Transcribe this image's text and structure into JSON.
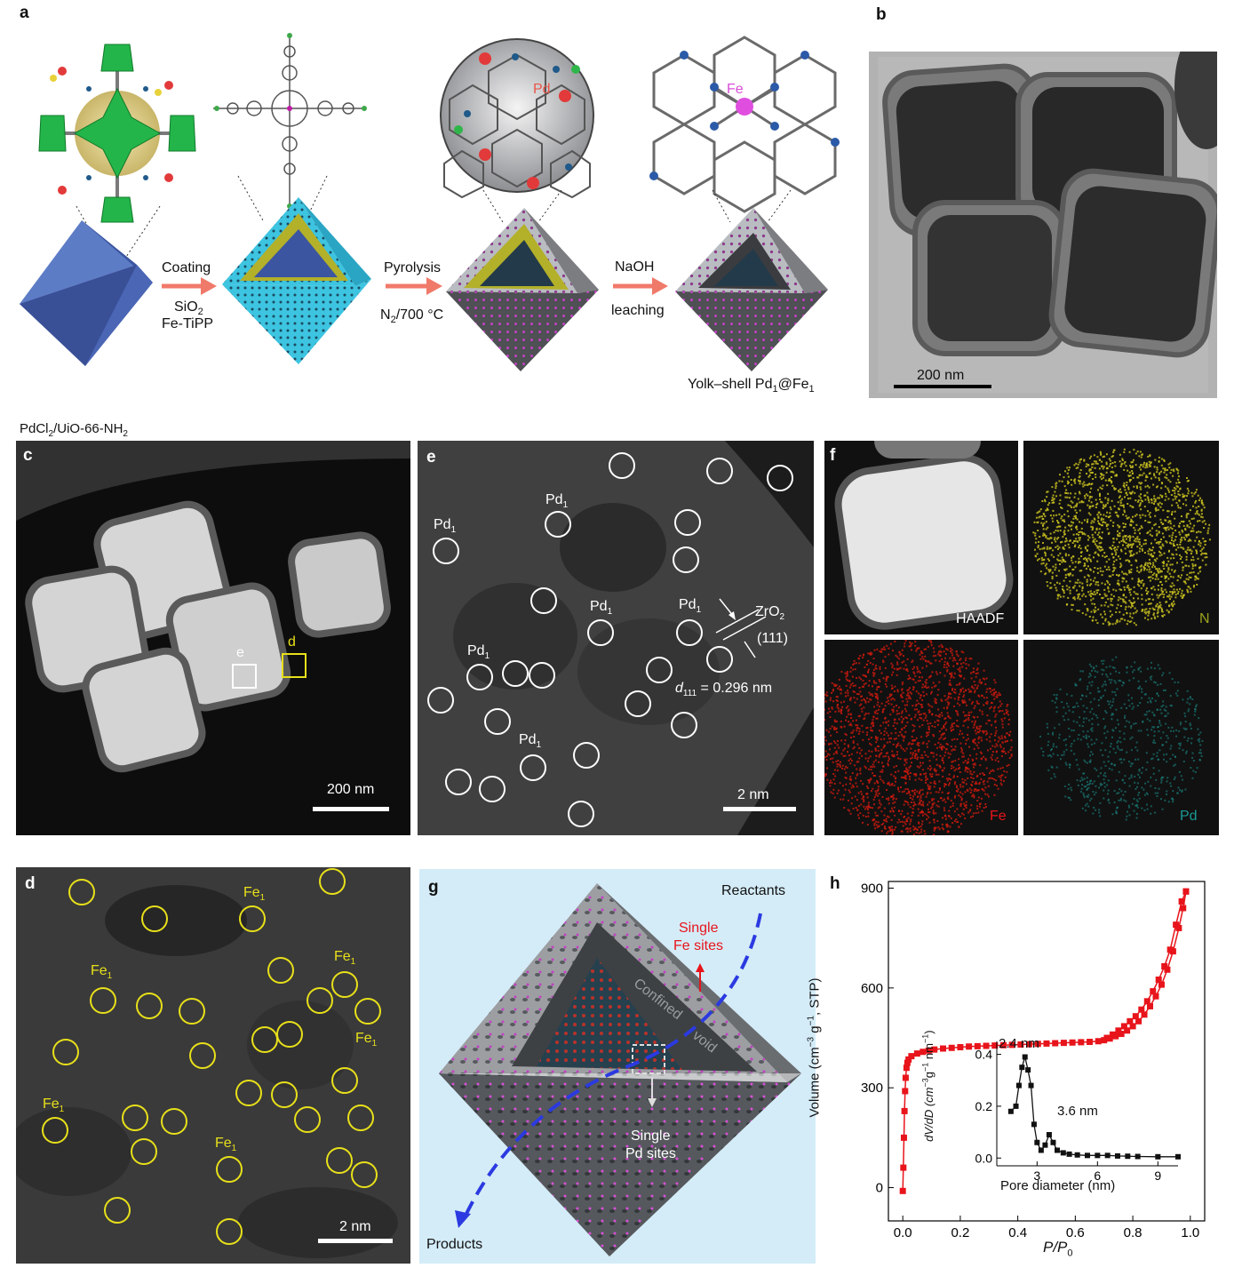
{
  "panel_a": {
    "label": "a",
    "step1": {
      "top": "Coating",
      "bottom1": "SiO",
      "bottom1_sub": "2",
      "bottom2": "Fe-TiPP"
    },
    "step2": {
      "top": "Pyrolysis",
      "bottom_pre": "N",
      "bottom_sub": "2",
      "bottom_post": "/700 °C"
    },
    "step3": {
      "top": "NaOH",
      "bottom": "leaching"
    },
    "pd_label": "Pd",
    "fe_label": "Fe",
    "product_pre": "Yolk–shell Pd",
    "product_sub1": "1",
    "product_mid": "@Fe",
    "product_sub2": "1"
  },
  "panel_b": {
    "label": "b",
    "scale": "200 nm"
  },
  "caption_c_pre": "PdCl",
  "caption_c_sub1": "2",
  "caption_c_mid": "/UiO-66-NH",
  "caption_c_sub2": "2",
  "panel_c": {
    "label": "c",
    "scale": "200 nm",
    "box_e": "e",
    "box_d": "d"
  },
  "panel_e": {
    "label": "e",
    "scale": "2 nm",
    "site": "Pd",
    "site_sub": "1",
    "zro2_pre": "ZrO",
    "zro2_sub": "2",
    "plane": "(111)",
    "d_pre": "d",
    "d_sub": "111",
    "d_post": " = 0.296 nm"
  },
  "panel_f": {
    "label": "f",
    "haadf": "HAADF",
    "n": "N",
    "fe": "Fe",
    "pd": "Pd",
    "colors": {
      "n": "#c8c01e",
      "fe": "#d11a0e",
      "pd": "#1a8a86"
    }
  },
  "panel_d": {
    "label": "d",
    "scale": "2 nm",
    "site": "Fe",
    "site_sub": "1"
  },
  "panel_g": {
    "label": "g",
    "reactants": "Reactants",
    "products": "Products",
    "fe_sites1": "Single",
    "fe_sites2": "Fe sites",
    "void1": "Confined",
    "void2": "void",
    "pd_sites1": "Single",
    "pd_sites2": "Pd sites"
  },
  "panel_h": {
    "label": "h",
    "ylabel_pre": "Volume (cm",
    "ylabel_sup1": "−3",
    "ylabel_mid": " g",
    "ylabel_sup2": "−1",
    "ylabel_post": ", STP)",
    "xlabel_pre": "P/P",
    "xlabel_sub": "0",
    "inset_xlabel": "Pore diameter (nm)",
    "inset_ylabel_pre": "dV/dD (cm",
    "inset_ylabel_sup1": "−3",
    "inset_ylabel_mid": "g",
    "inset_ylabel_sup2": "−1",
    "inset_ylabel_post": " nm",
    "inset_ylabel_sup3": "−1",
    "inset_ylabel_end": ")",
    "annot1": "2.4 nm",
    "annot2": "3.6 nm"
  },
  "chart_data": [
    {
      "type": "scatter",
      "xlabel": "P/P0",
      "ylabel": "Volume (cm−3 g−1, STP)",
      "xlim": [
        -0.05,
        1.05
      ],
      "ylim": [
        -100,
        920
      ],
      "xticks": [
        "0.0",
        "0.2",
        "0.4",
        "0.6",
        "0.8",
        "1.0"
      ],
      "yticks": [
        "0",
        "300",
        "600",
        "900"
      ],
      "series": [
        {
          "color": "#e8141b",
          "x": [
            0.0,
            0.002,
            0.004,
            0.006,
            0.008,
            0.01,
            0.013,
            0.016,
            0.02,
            0.03,
            0.05,
            0.07,
            0.09,
            0.11,
            0.14,
            0.17,
            0.2,
            0.23,
            0.26,
            0.29,
            0.32,
            0.35,
            0.38,
            0.41,
            0.44,
            0.47,
            0.5,
            0.53,
            0.56,
            0.59,
            0.62,
            0.65,
            0.68,
            0.7,
            0.72,
            0.74,
            0.76,
            0.78,
            0.8,
            0.82,
            0.84,
            0.86,
            0.88,
            0.9,
            0.92,
            0.94,
            0.96,
            0.975,
            0.985
          ],
          "y": [
            -10,
            60,
            150,
            230,
            290,
            330,
            360,
            375,
            385,
            395,
            403,
            408,
            412,
            415,
            418,
            420,
            422,
            424,
            425,
            426,
            427,
            428,
            429,
            430,
            431,
            432,
            433,
            434,
            435,
            436,
            437,
            438,
            440,
            443,
            448,
            455,
            462,
            472,
            485,
            500,
            520,
            545,
            575,
            610,
            655,
            710,
            780,
            840,
            890
          ]
        },
        {
          "color": "#e8141b",
          "x": [
            0.985,
            0.97,
            0.95,
            0.93,
            0.91,
            0.89,
            0.87,
            0.85,
            0.83,
            0.81,
            0.79,
            0.77,
            0.75,
            0.73,
            0.71
          ],
          "y": [
            890,
            860,
            790,
            715,
            665,
            625,
            590,
            560,
            535,
            515,
            500,
            485,
            472,
            460,
            450
          ]
        }
      ]
    },
    {
      "type": "line",
      "xlabel": "Pore diameter (nm)",
      "ylabel": "dV/dD (cm−3 g−1 nm−1)",
      "xlim": [
        1.0,
        10.0
      ],
      "ylim": [
        -0.03,
        0.45
      ],
      "xticks": [
        "3",
        "6",
        "9"
      ],
      "yticks": [
        "0.0",
        "0.2",
        "0.4"
      ],
      "series": [
        {
          "color": "#111111",
          "x": [
            1.7,
            1.95,
            2.1,
            2.25,
            2.4,
            2.55,
            2.7,
            2.85,
            3.0,
            3.2,
            3.4,
            3.6,
            3.8,
            4.0,
            4.3,
            4.6,
            5.0,
            5.5,
            6.0,
            6.5,
            7.0,
            7.5,
            8.0,
            9.0,
            10.0
          ],
          "y": [
            0.18,
            0.2,
            0.28,
            0.35,
            0.39,
            0.34,
            0.28,
            0.13,
            0.06,
            0.03,
            0.05,
            0.09,
            0.06,
            0.03,
            0.02,
            0.015,
            0.012,
            0.01,
            0.01,
            0.01,
            0.008,
            0.007,
            0.006,
            0.005,
            0.005
          ]
        }
      ],
      "annotations": [
        "2.4 nm",
        "3.6 nm"
      ]
    }
  ]
}
